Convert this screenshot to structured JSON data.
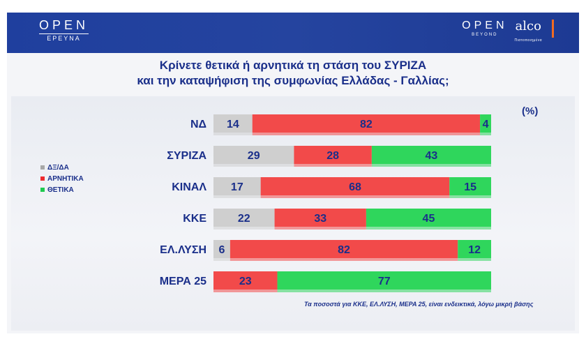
{
  "header": {
    "left_logo": "OPEN",
    "left_logo_sub": "ΕΡΕΥΝΑ",
    "right_logo": "OPEN",
    "right_logo_sub": "BEYOND",
    "partner_logo": "alco",
    "partner_logo_sub": "Πιστοποιημένα"
  },
  "title_line1": "Κρίνετε θετικά ή αρνητικά τη στάση του  ΣΥΡΙΖΑ",
  "title_line2": "και την καταψήφιση της συμφωνίας Ελλάδας - Γαλλίας;",
  "unit_label": "(%)",
  "legend": [
    {
      "label": "ΔΞ/ΔΑ",
      "color": "#a7a7a7"
    },
    {
      "label": "ΑΡΝΗΤΙΚΑ",
      "color": "#ee2b2f"
    },
    {
      "label": "ΘΕΤΙΚΑ",
      "color": "#1fca4f"
    }
  ],
  "footnote": "Τα ποσοστά για ΚΚΕ, ΕΛ.ΛΥΣΗ, ΜΕΡΑ 25, είναι ενδεικτικά, λόγω μικρή βάσης",
  "colors": {
    "dk": "#cfcfcf",
    "negative": "#f24a4a",
    "positive": "#2fd65c",
    "text": "#1a2f8a"
  },
  "chart_data": {
    "type": "bar",
    "orientation": "horizontal",
    "stacked": true,
    "categories": [
      "ΝΔ",
      "ΣΥΡΙΖΑ",
      "ΚΙΝΑΛ",
      "ΚΚΕ",
      "ΕΛ.ΛΥΣΗ",
      "ΜΕΡΑ 25"
    ],
    "series": [
      {
        "name": "ΔΞ/ΔΑ",
        "values": [
          14,
          29,
          17,
          22,
          6,
          0
        ]
      },
      {
        "name": "ΑΡΝΗΤΙΚΑ",
        "values": [
          82,
          28,
          68,
          33,
          82,
          23
        ]
      },
      {
        "name": "ΘΕΤΙΚΑ",
        "values": [
          4,
          43,
          15,
          45,
          12,
          77
        ]
      }
    ],
    "xlim": [
      0,
      100
    ],
    "legend_position": "left"
  }
}
